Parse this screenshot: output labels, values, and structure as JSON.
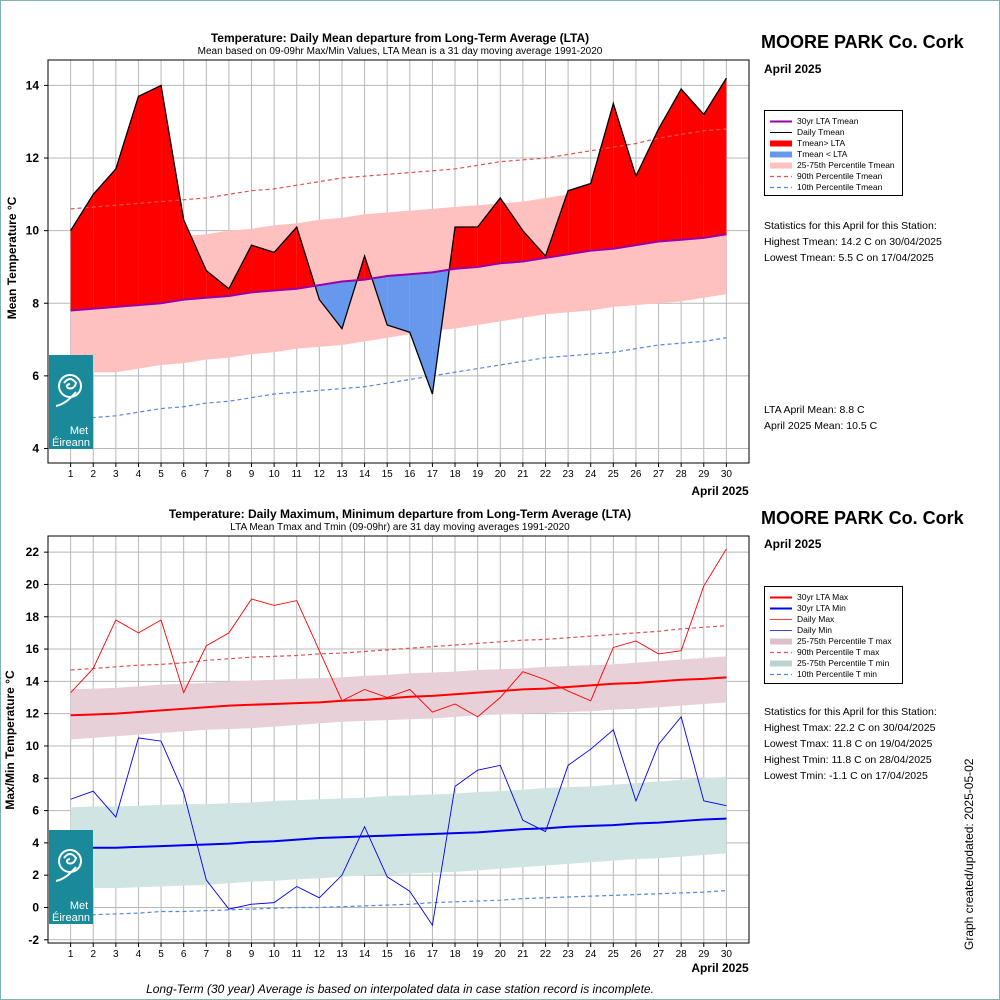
{
  "footnote": "Long-Term (30 year) Average is based on interpolated data in case station record is incomplete.",
  "updated": "Graph created/updated:  2025-05-02",
  "logo": {
    "text1": "Met",
    "text2": "Éireann",
    "bg": "#1a8a9a"
  },
  "chart_data": [
    {
      "type": "area",
      "title": "Temperature: Daily Mean departure from Long-Term Average (LTA)",
      "subtitle": "Mean based on 09-09hr Max/Min Values, LTA Mean is a 31 day moving average 1991-2020",
      "station": "MOORE PARK Co. Cork",
      "month": "April 2025",
      "xlabel": "April 2025",
      "ylabel": "Mean Temperature °C",
      "xlim": [
        0,
        31
      ],
      "ylim": [
        3.6,
        14.7
      ],
      "xticks": [
        1,
        2,
        3,
        4,
        5,
        6,
        7,
        8,
        9,
        10,
        11,
        12,
        13,
        14,
        15,
        16,
        17,
        18,
        19,
        20,
        21,
        22,
        23,
        24,
        25,
        26,
        27,
        28,
        29,
        30
      ],
      "yticks": [
        4,
        6,
        8,
        10,
        12,
        14
      ],
      "grid": true,
      "legend_position": "right",
      "legend": [
        "30yr LTA Tmean",
        "Daily Tmean",
        "Tmean> LTA",
        "Tmean < LTA",
        "25-75th Percentile Tmean",
        "90th Percentile Tmean",
        "10th Percentile Tmean"
      ],
      "colors": {
        "lta": "#9900aa",
        "above": "#ff0000",
        "below": "#6699ee",
        "band": "#ffc0c0",
        "p90": "#dd5555",
        "p10": "#5588dd"
      },
      "x": [
        1,
        2,
        3,
        4,
        5,
        6,
        7,
        8,
        9,
        10,
        11,
        12,
        13,
        14,
        15,
        16,
        17,
        18,
        19,
        20,
        21,
        22,
        23,
        24,
        25,
        26,
        27,
        28,
        29,
        30
      ],
      "daily": [
        10.0,
        11.0,
        11.7,
        13.7,
        14.0,
        10.3,
        8.9,
        8.4,
        9.6,
        9.4,
        10.1,
        8.1,
        7.3,
        9.3,
        7.4,
        7.2,
        5.5,
        10.1,
        10.1,
        10.9,
        10.0,
        9.3,
        11.1,
        11.3,
        13.5,
        11.5,
        12.8,
        13.9,
        13.2,
        14.2
      ],
      "lta": [
        7.8,
        7.85,
        7.9,
        7.95,
        8.0,
        8.1,
        8.15,
        8.2,
        8.3,
        8.35,
        8.4,
        8.5,
        8.6,
        8.65,
        8.75,
        8.8,
        8.85,
        8.95,
        9.0,
        9.1,
        9.15,
        9.25,
        9.35,
        9.45,
        9.5,
        9.6,
        9.7,
        9.75,
        9.8,
        9.9
      ],
      "p25": [
        6.0,
        6.1,
        6.1,
        6.2,
        6.3,
        6.35,
        6.45,
        6.5,
        6.6,
        6.65,
        6.75,
        6.8,
        6.85,
        6.95,
        7.05,
        7.15,
        7.25,
        7.3,
        7.4,
        7.5,
        7.6,
        7.7,
        7.75,
        7.8,
        7.9,
        7.95,
        8.0,
        8.05,
        8.15,
        8.25
      ],
      "p75": [
        9.6,
        9.65,
        9.7,
        9.75,
        9.8,
        9.85,
        9.9,
        10.0,
        10.05,
        10.15,
        10.2,
        10.3,
        10.35,
        10.45,
        10.5,
        10.55,
        10.6,
        10.65,
        10.7,
        10.75,
        10.8,
        10.9,
        11.0,
        11.05,
        11.1,
        11.15,
        11.25,
        11.35,
        11.4,
        11.5
      ],
      "p90": [
        10.6,
        10.65,
        10.7,
        10.75,
        10.8,
        10.85,
        10.9,
        11.0,
        11.1,
        11.15,
        11.25,
        11.35,
        11.45,
        11.5,
        11.55,
        11.6,
        11.65,
        11.7,
        11.8,
        11.9,
        11.95,
        12.0,
        12.1,
        12.2,
        12.3,
        12.4,
        12.55,
        12.65,
        12.75,
        12.8
      ],
      "p10": [
        4.85,
        4.85,
        4.9,
        5.0,
        5.1,
        5.15,
        5.25,
        5.3,
        5.4,
        5.5,
        5.55,
        5.6,
        5.65,
        5.7,
        5.8,
        5.9,
        6.0,
        6.1,
        6.2,
        6.3,
        6.4,
        6.5,
        6.55,
        6.6,
        6.65,
        6.75,
        6.85,
        6.9,
        6.95,
        7.05
      ],
      "stats_heading": "Statistics for this April for this Station:",
      "stats": [
        "Highest Tmean: 14.2 C on 30/04/2025",
        "Lowest Tmean: 5.5 C on 17/04/2025"
      ],
      "summary": [
        "LTA April Mean: 8.8 C",
        "April 2025 Mean: 10.5 C"
      ]
    },
    {
      "type": "line",
      "title": "Temperature: Daily Maximum, Minimum departure from Long-Term Average (LTA)",
      "subtitle": "LTA Mean Tmax and Tmin (09-09hr) are 31 day moving averages 1991-2020",
      "station": "MOORE PARK Co. Cork",
      "month": "April 2025",
      "xlabel": "April 2025",
      "ylabel": "Max/Min Temperature °C",
      "xlim": [
        0,
        31
      ],
      "ylim": [
        -2.2,
        23.0
      ],
      "xticks": [
        1,
        2,
        3,
        4,
        5,
        6,
        7,
        8,
        9,
        10,
        11,
        12,
        13,
        14,
        15,
        16,
        17,
        18,
        19,
        20,
        21,
        22,
        23,
        24,
        25,
        26,
        27,
        28,
        29,
        30
      ],
      "yticks": [
        -2,
        0,
        2,
        4,
        6,
        8,
        10,
        12,
        14,
        16,
        18,
        20,
        22
      ],
      "grid": true,
      "legend_position": "right",
      "legend": [
        "30yr LTA Max",
        "30yr LTA Min",
        "Daily Max",
        "Daily Min",
        "25-75th Percentile T max",
        "90th Percentile T max",
        "25-75th Percentile T min",
        "10th Percentile T min"
      ],
      "colors": {
        "ltaMax": "#ff0000",
        "ltaMin": "#0000ee",
        "max": "#ff0000",
        "min": "#0000ee",
        "bandMax": "#e8d0d8",
        "bandMin": "#d0e4e4",
        "p90": "#dd5555",
        "p10": "#5588dd"
      },
      "x": [
        1,
        2,
        3,
        4,
        5,
        6,
        7,
        8,
        9,
        10,
        11,
        12,
        13,
        14,
        15,
        16,
        17,
        18,
        19,
        20,
        21,
        22,
        23,
        24,
        25,
        26,
        27,
        28,
        29,
        30
      ],
      "tmax": [
        13.3,
        14.8,
        17.8,
        17.0,
        17.8,
        13.3,
        16.2,
        17.0,
        19.1,
        18.7,
        19.0,
        15.9,
        12.8,
        13.5,
        13.0,
        13.5,
        12.1,
        12.6,
        11.8,
        13.0,
        14.6,
        14.1,
        13.4,
        12.8,
        16.1,
        16.5,
        15.7,
        15.9,
        19.9,
        22.2
      ],
      "tmin": [
        6.7,
        7.2,
        5.6,
        10.5,
        10.3,
        7.1,
        1.7,
        -0.1,
        0.2,
        0.3,
        1.3,
        0.6,
        2.0,
        5.0,
        1.9,
        1.0,
        -1.1,
        7.5,
        8.5,
        8.8,
        5.4,
        4.7,
        8.8,
        9.8,
        11.0,
        6.6,
        10.1,
        11.8,
        6.6,
        6.3
      ],
      "ltaMax": [
        11.9,
        11.95,
        12.0,
        12.1,
        12.2,
        12.3,
        12.4,
        12.5,
        12.55,
        12.6,
        12.65,
        12.7,
        12.8,
        12.85,
        12.95,
        13.05,
        13.1,
        13.2,
        13.3,
        13.4,
        13.5,
        13.55,
        13.65,
        13.75,
        13.85,
        13.9,
        14.0,
        14.1,
        14.15,
        14.25
      ],
      "ltaMin": [
        3.7,
        3.7,
        3.7,
        3.75,
        3.8,
        3.85,
        3.9,
        3.95,
        4.05,
        4.1,
        4.2,
        4.3,
        4.35,
        4.4,
        4.45,
        4.5,
        4.55,
        4.6,
        4.65,
        4.75,
        4.85,
        4.9,
        5.0,
        5.05,
        5.1,
        5.2,
        5.25,
        5.35,
        5.45,
        5.5
      ],
      "p25max": [
        10.4,
        10.5,
        10.6,
        10.7,
        10.8,
        10.9,
        11.0,
        11.05,
        11.1,
        11.2,
        11.3,
        11.4,
        11.5,
        11.55,
        11.6,
        11.65,
        11.7,
        11.8,
        11.9,
        11.95,
        12.0,
        12.05,
        12.1,
        12.15,
        12.25,
        12.3,
        12.4,
        12.5,
        12.6,
        12.7
      ],
      "p75max": [
        13.5,
        13.55,
        13.6,
        13.7,
        13.8,
        13.85,
        13.9,
        14.0,
        14.05,
        14.1,
        14.15,
        14.2,
        14.25,
        14.35,
        14.4,
        14.5,
        14.55,
        14.6,
        14.7,
        14.75,
        14.8,
        14.9,
        14.95,
        15.0,
        15.05,
        15.15,
        15.25,
        15.35,
        15.45,
        15.55
      ],
      "p90max": [
        14.7,
        14.8,
        14.9,
        15.0,
        15.05,
        15.15,
        15.3,
        15.4,
        15.5,
        15.55,
        15.6,
        15.7,
        15.75,
        15.85,
        15.95,
        16.05,
        16.15,
        16.25,
        16.35,
        16.45,
        16.55,
        16.6,
        16.7,
        16.8,
        16.9,
        17.0,
        17.1,
        17.25,
        17.35,
        17.45
      ],
      "p25min": [
        1.2,
        1.2,
        1.2,
        1.25,
        1.3,
        1.35,
        1.4,
        1.5,
        1.6,
        1.65,
        1.75,
        1.8,
        1.9,
        2.0,
        2.05,
        2.1,
        2.15,
        2.2,
        2.3,
        2.4,
        2.5,
        2.6,
        2.7,
        2.8,
        2.9,
        3.0,
        3.05,
        3.15,
        3.25,
        3.35
      ],
      "p75min": [
        6.2,
        6.25,
        6.25,
        6.3,
        6.35,
        6.4,
        6.4,
        6.45,
        6.5,
        6.6,
        6.65,
        6.7,
        6.75,
        6.8,
        6.9,
        6.95,
        7.0,
        7.05,
        7.15,
        7.2,
        7.3,
        7.4,
        7.45,
        7.5,
        7.6,
        7.7,
        7.8,
        7.9,
        8.0,
        8.1
      ],
      "p10min": [
        -0.4,
        -0.45,
        -0.4,
        -0.35,
        -0.25,
        -0.25,
        -0.2,
        -0.15,
        -0.1,
        -0.05,
        0.0,
        0.0,
        0.05,
        0.1,
        0.15,
        0.2,
        0.3,
        0.35,
        0.4,
        0.45,
        0.55,
        0.6,
        0.65,
        0.7,
        0.75,
        0.8,
        0.85,
        0.9,
        0.95,
        1.05
      ],
      "stats_heading": "Statistics for this April for this Station:",
      "stats": [
        "Highest Tmax: 22.2 C on 30/04/2025",
        "Lowest Tmax: 11.8 C on 19/04/2025",
        "Highest Tmin: 11.8 C on 28/04/2025",
        "Lowest Tmin: -1.1 C on 17/04/2025"
      ]
    }
  ]
}
